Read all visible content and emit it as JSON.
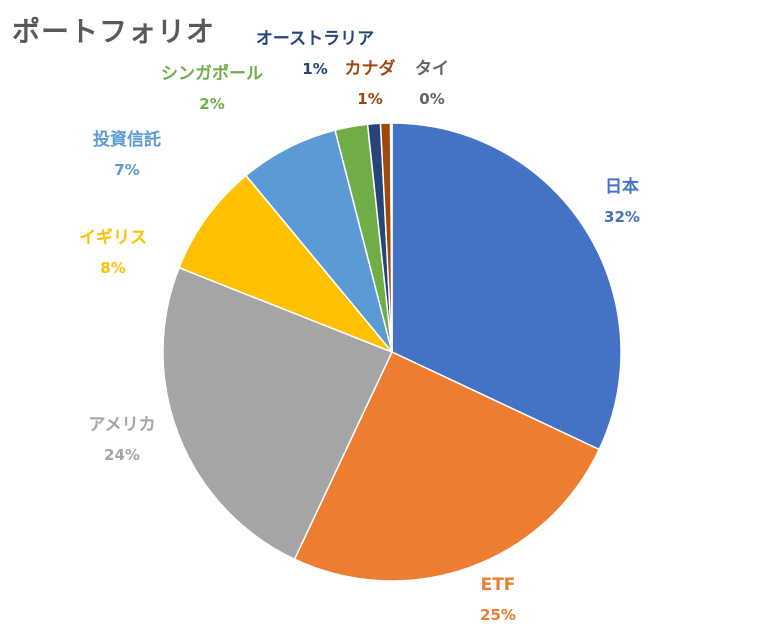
{
  "chart_data": {
    "type": "pie",
    "title": "ポートフォリオ",
    "slices": [
      {
        "label": "日本",
        "value": 32,
        "display": "32%",
        "color": "#4472C4"
      },
      {
        "label": "ETF",
        "value": 25,
        "display": "25%",
        "color": "#ED7D31"
      },
      {
        "label": "アメリカ",
        "value": 24,
        "display": "24%",
        "color": "#A5A5A5"
      },
      {
        "label": "イギリス",
        "value": 8,
        "display": "8%",
        "color": "#FFC000"
      },
      {
        "label": "投資信託",
        "value": 7,
        "display": "7%",
        "color": "#5B9BD5"
      },
      {
        "label": "シンガポール",
        "value": 2.3,
        "display": "2%",
        "color": "#70AD47"
      },
      {
        "label": "オーストラリア",
        "value": 0.9,
        "display": "1%",
        "color": "#264478"
      },
      {
        "label": "カナダ",
        "value": 0.7,
        "display": "1%",
        "color": "#9E480E"
      },
      {
        "label": "タイ",
        "value": 0.1,
        "display": "0%",
        "color": "#636363"
      }
    ],
    "legend": "none",
    "data_labels": "outside"
  }
}
